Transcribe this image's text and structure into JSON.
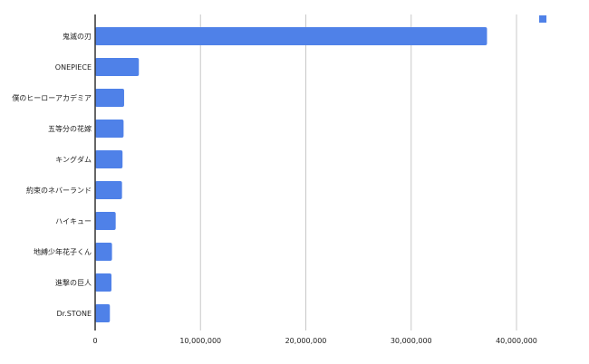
{
  "chart_data": {
    "type": "bar",
    "orientation": "horizontal",
    "categories": [
      "鬼滅の刃",
      "ONEPIECE",
      "僕のヒーローアカデミア",
      "五等分の花嫁",
      "キングダム",
      "約束のネバーランド",
      "ハイキュー",
      "地縛少年花子くん",
      "進撃の巨人",
      "Dr.STONE"
    ],
    "series": [
      {
        "values": [
          37200000,
          4150000,
          2750000,
          2700000,
          2600000,
          2550000,
          1950000,
          1600000,
          1550000,
          1400000
        ],
        "color": "#4f81e8"
      }
    ],
    "xlim": [
      0,
      40000000
    ],
    "xticks": [
      0,
      10000000,
      20000000,
      30000000,
      40000000
    ],
    "xtick_labels": [
      "0",
      "10,000,000",
      "20,000,000",
      "30,000,000",
      "40,000,000"
    ],
    "grid": "vertical",
    "legend": {
      "position": "top-right",
      "swatch_color": "#4f81e8",
      "label": ""
    }
  }
}
